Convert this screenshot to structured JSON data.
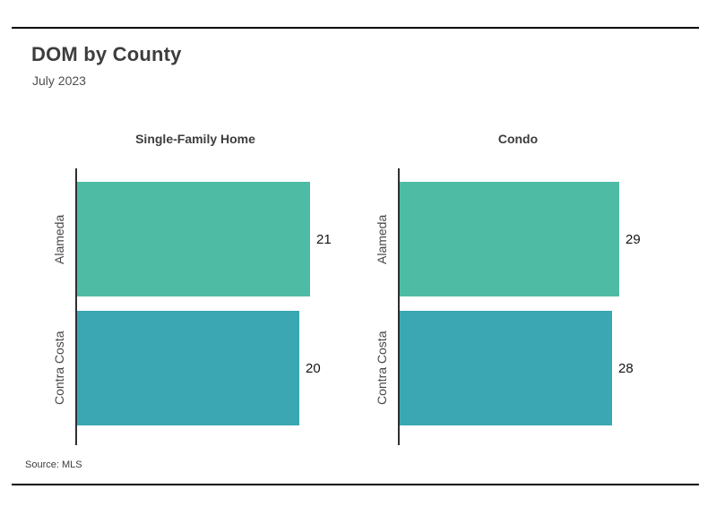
{
  "page": {
    "title": "DOM by County",
    "subtitle": "July 2023",
    "source": "Source: MLS"
  },
  "chart_data": {
    "type": "bar",
    "orientation": "horizontal",
    "title": "DOM by County",
    "subtitle": "July 2023",
    "source": "Source: MLS",
    "categories": [
      "Alameda",
      "Contra Costa"
    ],
    "panels": [
      {
        "title": "Single-Family Home",
        "values": [
          21,
          20
        ],
        "xlim": [
          0,
          24.2
        ]
      },
      {
        "title": "Condo",
        "values": [
          29,
          28
        ],
        "xlim": [
          0,
          35.5
        ]
      }
    ],
    "series_colors": {
      "Alameda": "#4EBCA5",
      "Contra Costa": "#3AA7B2"
    },
    "axis_color": "#2f2f2f",
    "rule_color": "#000000",
    "grid": false,
    "legend": "none",
    "value_labels": true
  }
}
